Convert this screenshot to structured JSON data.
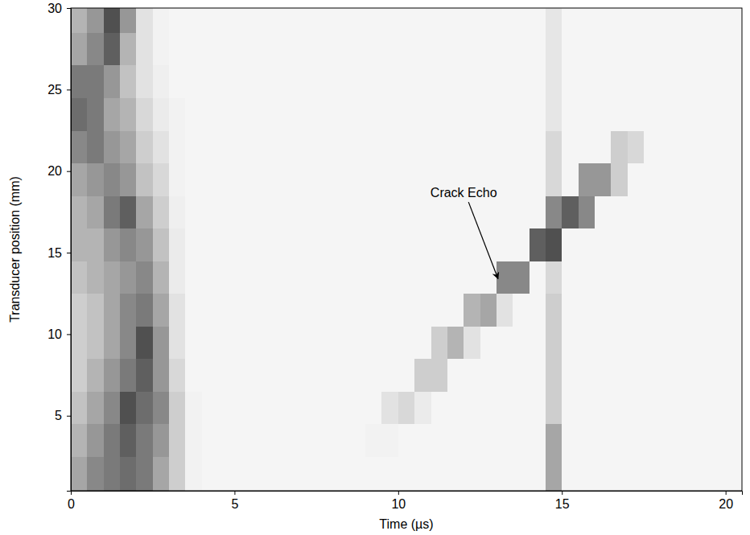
{
  "chart_data": {
    "type": "heatmap",
    "x_label": "Time (µs)",
    "y_label": "Transducer position (mm)",
    "xlim": [
      0,
      20.5
    ],
    "ylim": [
      0.4,
      30
    ],
    "xticks": [
      0,
      5,
      10,
      15,
      20
    ],
    "yticks": [
      5,
      10,
      15,
      20,
      25,
      30
    ],
    "color_range": [
      0,
      1
    ],
    "x_edges": [
      0,
      0.5,
      1,
      1.5,
      2,
      2.5,
      3,
      3.5,
      4,
      4.5,
      5,
      5.5,
      6,
      6.5,
      7,
      7.5,
      8,
      8.5,
      9,
      9.5,
      10,
      10.5,
      11,
      11.5,
      12,
      12.5,
      13,
      13.5,
      14,
      14.5,
      15,
      15.5,
      16,
      16.5,
      17,
      17.5,
      18,
      18.5,
      19,
      19.5,
      20,
      20.5
    ],
    "y_edges": [
      0.4,
      2.5,
      4.5,
      6.5,
      8.5,
      10.5,
      12.5,
      14.5,
      16.5,
      18.5,
      20.5,
      22.5,
      24.5,
      26.5,
      28.5,
      30
    ],
    "cells": [
      [
        0.45,
        0.55,
        0.6,
        0.65,
        0.6,
        0.45,
        0.3,
        0.1,
        0.08,
        0.08,
        0.08,
        0.08,
        0.08,
        0.08,
        0.08,
        0.08,
        0.08,
        0.08,
        0.08,
        0.08,
        0.08,
        0.08,
        0.08,
        0.08,
        0.08,
        0.08,
        0.08,
        0.08,
        0.08,
        0.45,
        0.08,
        0.08,
        0.08,
        0.08,
        0.08,
        0.08,
        0.08,
        0.08,
        0.08,
        0.08,
        0.08
      ],
      [
        0.4,
        0.5,
        0.6,
        0.7,
        0.6,
        0.5,
        0.3,
        0.1,
        0.08,
        0.08,
        0.08,
        0.08,
        0.08,
        0.08,
        0.08,
        0.08,
        0.08,
        0.08,
        0.1,
        0.1,
        0.08,
        0.08,
        0.08,
        0.08,
        0.08,
        0.08,
        0.08,
        0.08,
        0.08,
        0.45,
        0.08,
        0.08,
        0.08,
        0.08,
        0.08,
        0.08,
        0.08,
        0.08,
        0.08,
        0.08,
        0.08
      ],
      [
        0.35,
        0.45,
        0.55,
        0.75,
        0.65,
        0.55,
        0.3,
        0.1,
        0.08,
        0.08,
        0.08,
        0.08,
        0.08,
        0.08,
        0.08,
        0.08,
        0.08,
        0.08,
        0.08,
        0.2,
        0.25,
        0.15,
        0.08,
        0.08,
        0.08,
        0.08,
        0.08,
        0.08,
        0.08,
        0.3,
        0.08,
        0.08,
        0.08,
        0.08,
        0.08,
        0.08,
        0.08,
        0.08,
        0.08,
        0.08,
        0.08
      ],
      [
        0.3,
        0.4,
        0.5,
        0.6,
        0.7,
        0.5,
        0.25,
        0.08,
        0.08,
        0.08,
        0.08,
        0.08,
        0.08,
        0.08,
        0.08,
        0.08,
        0.08,
        0.08,
        0.08,
        0.08,
        0.08,
        0.3,
        0.3,
        0.08,
        0.08,
        0.08,
        0.08,
        0.08,
        0.08,
        0.3,
        0.08,
        0.08,
        0.08,
        0.08,
        0.08,
        0.08,
        0.08,
        0.08,
        0.08,
        0.08,
        0.08
      ],
      [
        0.3,
        0.35,
        0.45,
        0.55,
        0.75,
        0.5,
        0.2,
        0.08,
        0.08,
        0.08,
        0.08,
        0.08,
        0.08,
        0.08,
        0.08,
        0.08,
        0.08,
        0.08,
        0.08,
        0.08,
        0.08,
        0.08,
        0.3,
        0.4,
        0.2,
        0.08,
        0.08,
        0.08,
        0.08,
        0.3,
        0.08,
        0.08,
        0.08,
        0.08,
        0.08,
        0.08,
        0.08,
        0.08,
        0.08,
        0.08,
        0.08
      ],
      [
        0.3,
        0.35,
        0.45,
        0.55,
        0.6,
        0.45,
        0.2,
        0.08,
        0.08,
        0.08,
        0.08,
        0.08,
        0.08,
        0.08,
        0.08,
        0.08,
        0.08,
        0.08,
        0.08,
        0.08,
        0.08,
        0.08,
        0.08,
        0.08,
        0.4,
        0.45,
        0.2,
        0.08,
        0.08,
        0.3,
        0.08,
        0.08,
        0.08,
        0.08,
        0.08,
        0.08,
        0.08,
        0.08,
        0.08,
        0.08,
        0.08
      ],
      [
        0.35,
        0.4,
        0.45,
        0.5,
        0.55,
        0.4,
        0.15,
        0.08,
        0.08,
        0.08,
        0.08,
        0.08,
        0.08,
        0.08,
        0.08,
        0.08,
        0.08,
        0.08,
        0.08,
        0.08,
        0.08,
        0.08,
        0.08,
        0.08,
        0.08,
        0.08,
        0.55,
        0.55,
        0.08,
        0.25,
        0.08,
        0.08,
        0.08,
        0.08,
        0.08,
        0.08,
        0.08,
        0.08,
        0.08,
        0.08,
        0.08
      ],
      [
        0.4,
        0.4,
        0.5,
        0.55,
        0.5,
        0.35,
        0.15,
        0.08,
        0.08,
        0.08,
        0.08,
        0.08,
        0.08,
        0.08,
        0.08,
        0.08,
        0.08,
        0.08,
        0.08,
        0.08,
        0.08,
        0.08,
        0.08,
        0.08,
        0.08,
        0.08,
        0.08,
        0.08,
        0.7,
        0.75,
        0.08,
        0.08,
        0.08,
        0.08,
        0.08,
        0.08,
        0.08,
        0.08,
        0.08,
        0.08,
        0.08
      ],
      [
        0.4,
        0.45,
        0.6,
        0.7,
        0.45,
        0.3,
        0.12,
        0.08,
        0.08,
        0.08,
        0.08,
        0.08,
        0.08,
        0.08,
        0.08,
        0.08,
        0.08,
        0.08,
        0.08,
        0.08,
        0.08,
        0.08,
        0.08,
        0.08,
        0.08,
        0.08,
        0.08,
        0.08,
        0.08,
        0.55,
        0.7,
        0.55,
        0.08,
        0.08,
        0.08,
        0.08,
        0.08,
        0.08,
        0.08,
        0.08,
        0.08
      ],
      [
        0.45,
        0.5,
        0.55,
        0.5,
        0.35,
        0.25,
        0.1,
        0.08,
        0.08,
        0.08,
        0.08,
        0.08,
        0.08,
        0.08,
        0.08,
        0.08,
        0.08,
        0.08,
        0.08,
        0.08,
        0.08,
        0.08,
        0.08,
        0.08,
        0.08,
        0.08,
        0.08,
        0.08,
        0.08,
        0.25,
        0.08,
        0.5,
        0.5,
        0.3,
        0.08,
        0.08,
        0.08,
        0.08,
        0.08,
        0.08,
        0.08
      ],
      [
        0.55,
        0.6,
        0.5,
        0.45,
        0.3,
        0.2,
        0.1,
        0.08,
        0.08,
        0.08,
        0.08,
        0.08,
        0.08,
        0.08,
        0.08,
        0.08,
        0.08,
        0.08,
        0.08,
        0.08,
        0.08,
        0.08,
        0.08,
        0.08,
        0.08,
        0.08,
        0.08,
        0.08,
        0.08,
        0.25,
        0.08,
        0.08,
        0.08,
        0.3,
        0.25,
        0.08,
        0.08,
        0.08,
        0.08,
        0.08,
        0.08
      ],
      [
        0.65,
        0.6,
        0.45,
        0.4,
        0.25,
        0.15,
        0.1,
        0.08,
        0.08,
        0.08,
        0.08,
        0.08,
        0.08,
        0.08,
        0.08,
        0.08,
        0.08,
        0.08,
        0.08,
        0.08,
        0.08,
        0.08,
        0.08,
        0.08,
        0.08,
        0.08,
        0.08,
        0.08,
        0.08,
        0.18,
        0.08,
        0.08,
        0.08,
        0.08,
        0.08,
        0.08,
        0.08,
        0.08,
        0.08,
        0.08,
        0.08
      ],
      [
        0.6,
        0.6,
        0.5,
        0.35,
        0.2,
        0.12,
        0.08,
        0.08,
        0.08,
        0.08,
        0.08,
        0.08,
        0.08,
        0.08,
        0.08,
        0.08,
        0.08,
        0.08,
        0.08,
        0.08,
        0.08,
        0.08,
        0.08,
        0.08,
        0.08,
        0.08,
        0.08,
        0.08,
        0.08,
        0.18,
        0.08,
        0.08,
        0.08,
        0.08,
        0.08,
        0.08,
        0.08,
        0.08,
        0.08,
        0.08,
        0.08
      ],
      [
        0.45,
        0.55,
        0.7,
        0.4,
        0.2,
        0.1,
        0.08,
        0.08,
        0.08,
        0.08,
        0.08,
        0.08,
        0.08,
        0.08,
        0.08,
        0.08,
        0.08,
        0.08,
        0.08,
        0.08,
        0.08,
        0.08,
        0.08,
        0.08,
        0.08,
        0.08,
        0.08,
        0.08,
        0.08,
        0.18,
        0.08,
        0.08,
        0.08,
        0.08,
        0.08,
        0.08,
        0.08,
        0.08,
        0.08,
        0.08,
        0.08
      ],
      [
        0.4,
        0.5,
        0.75,
        0.5,
        0.2,
        0.1,
        0.08,
        0.08,
        0.08,
        0.08,
        0.08,
        0.08,
        0.08,
        0.08,
        0.08,
        0.08,
        0.08,
        0.08,
        0.08,
        0.08,
        0.08,
        0.08,
        0.08,
        0.08,
        0.08,
        0.08,
        0.08,
        0.08,
        0.08,
        0.18,
        0.08,
        0.08,
        0.08,
        0.08,
        0.08,
        0.08,
        0.08,
        0.08,
        0.08,
        0.08,
        0.08
      ]
    ],
    "annotations": [
      {
        "text": "Crack Echo",
        "x": 12,
        "y": 18.4,
        "arrow_x": 13.05,
        "arrow_y": 13.4
      }
    ]
  }
}
